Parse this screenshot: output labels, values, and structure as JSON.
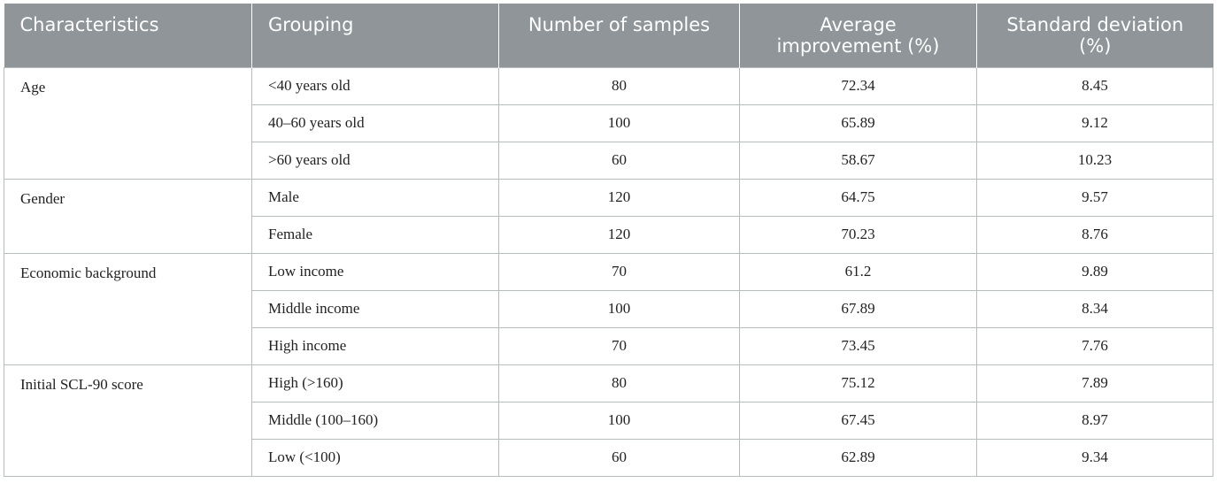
{
  "header": {
    "characteristics": "Characteristics",
    "grouping": "Grouping",
    "samples": "Number of samples",
    "average_line1": "Average",
    "average_line2": "improvement (%)",
    "sd_line1": "Standard deviation",
    "sd_line2": "(%)"
  },
  "groups": [
    {
      "characteristic": "Age",
      "rows": [
        {
          "grouping": "<40 years old",
          "samples": "80",
          "average": "72.34",
          "sd": "8.45"
        },
        {
          "grouping": "40–60 years old",
          "samples": "100",
          "average": "65.89",
          "sd": "9.12"
        },
        {
          "grouping": ">60 years old",
          "samples": "60",
          "average": "58.67",
          "sd": "10.23"
        }
      ]
    },
    {
      "characteristic": "Gender",
      "rows": [
        {
          "grouping": "Male",
          "samples": "120",
          "average": "64.75",
          "sd": "9.57"
        },
        {
          "grouping": "Female",
          "samples": "120",
          "average": "70.23",
          "sd": "8.76"
        }
      ]
    },
    {
      "characteristic": "Economic background",
      "rows": [
        {
          "grouping": "Low income",
          "samples": "70",
          "average": "61.2",
          "sd": "9.89"
        },
        {
          "grouping": "Middle income",
          "samples": "100",
          "average": "67.89",
          "sd": "8.34"
        },
        {
          "grouping": "High income",
          "samples": "70",
          "average": "73.45",
          "sd": "7.76"
        }
      ]
    },
    {
      "characteristic": "Initial SCL-90 score",
      "rows": [
        {
          "grouping": "High (>160)",
          "samples": "80",
          "average": "75.12",
          "sd": "7.89"
        },
        {
          "grouping": "Middle (100–160)",
          "samples": "100",
          "average": "67.45",
          "sd": "8.97"
        },
        {
          "grouping": "Low (<100)",
          "samples": "60",
          "average": "62.89",
          "sd": "9.34"
        }
      ]
    }
  ]
}
